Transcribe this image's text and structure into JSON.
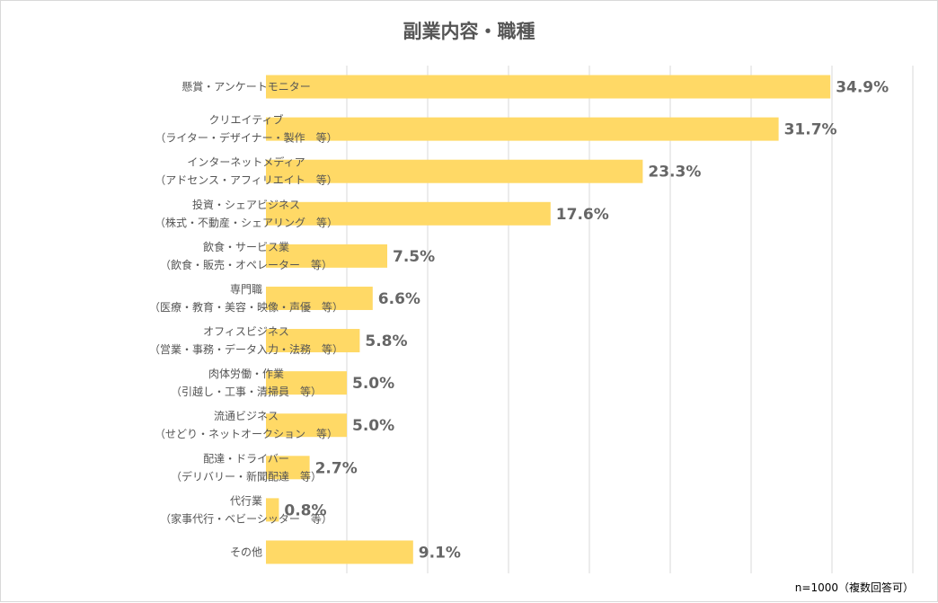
{
  "chart_data": {
    "type": "bar",
    "orientation": "horizontal",
    "title": "副業内容・職種",
    "note": "n=1000（複数回答可）",
    "categories": [
      [
        "懸賞・アンケートモニター"
      ],
      [
        "クリエイティブ",
        "（ライター・デザイナー・製作　等）"
      ],
      [
        "インターネットメディア",
        "（アドセンス・アフィリエイト　等）"
      ],
      [
        "投資・シェアビジネス",
        "（株式・不動産・シェアリング　等）"
      ],
      [
        "飲食・サービス業",
        "（飲食・販売・オペレーター　等）"
      ],
      [
        "専門職",
        "（医療・教育・美容・映像・声優　等）"
      ],
      [
        "オフィスビジネス",
        "（営業・事務・データ入力・法務　等）"
      ],
      [
        "肉体労働・作業",
        "（引越し・工事・清掃員　等）"
      ],
      [
        "流通ビジネス",
        "（せどり・ネットオークション　等）"
      ],
      [
        "配達・ドライバー",
        "（デリバリー・新聞配達　等）"
      ],
      [
        "代行業",
        "（家事代行・ベビーシッター　等）"
      ],
      [
        "その他"
      ]
    ],
    "values": [
      34.9,
      31.7,
      23.3,
      17.6,
      7.5,
      6.6,
      5.8,
      5.0,
      5.0,
      2.7,
      0.8,
      9.1
    ],
    "labels": [
      "34.9%",
      "31.7%",
      "23.3%",
      "17.6%",
      "7.5%",
      "6.6%",
      "5.8%",
      "5.0%",
      "5.0%",
      "2.7%",
      "0.8%",
      "9.1%"
    ],
    "xlim": [
      0,
      40
    ],
    "grid": true,
    "bar_color": "#FFD966",
    "grid_color": "#ECECEC"
  }
}
